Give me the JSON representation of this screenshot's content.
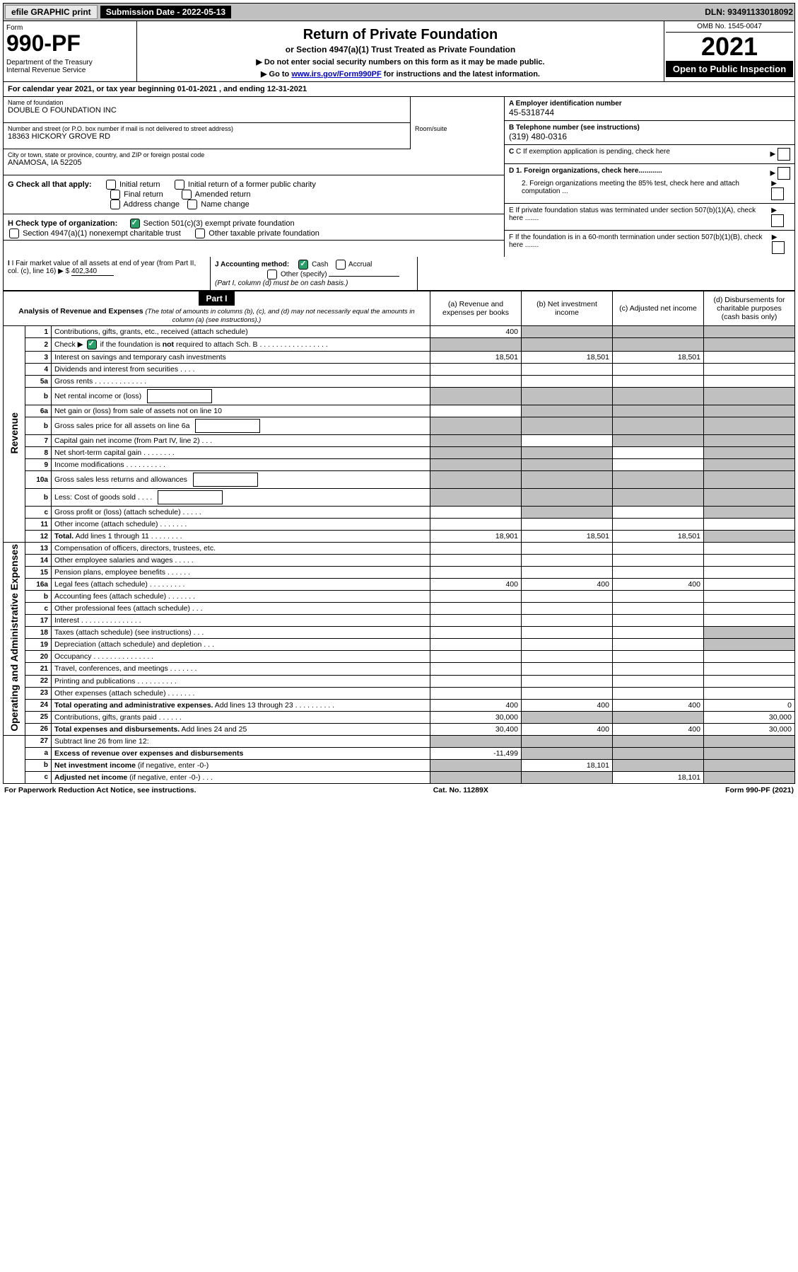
{
  "top_bar": {
    "efile_btn": "efile GRAPHIC print",
    "submission_label": "Submission Date - 2022-05-13",
    "dln": "DLN: 93491133018092"
  },
  "header": {
    "form_word": "Form",
    "form_number": "990-PF",
    "dept": "Department of the Treasury\nInternal Revenue Service",
    "title": "Return of Private Foundation",
    "subtitle": "or Section 4947(a)(1) Trust Treated as Private Foundation",
    "instr1": "▶ Do not enter social security numbers on this form as it may be made public.",
    "instr2_prefix": "▶ Go to ",
    "instr2_link": "www.irs.gov/Form990PF",
    "instr2_suffix": " for instructions and the latest information.",
    "omb": "OMB No. 1545-0047",
    "tax_year": "2021",
    "open_public": "Open to Public Inspection"
  },
  "cal_year": "For calendar year 2021, or tax year beginning 01-01-2021                          , and ending 12-31-2021",
  "info": {
    "name_label": "Name of foundation",
    "name": "DOUBLE O FOUNDATION INC",
    "addr_label": "Number and street (or P.O. box number if mail is not delivered to street address)",
    "addr": "18363 HICKORY GROVE RD",
    "room_label": "Room/suite",
    "city_label": "City or town, state or province, country, and ZIP or foreign postal code",
    "city": "ANAMOSA, IA  52205",
    "ein_label": "A Employer identification number",
    "ein": "45-5318744",
    "phone_label": "B Telephone number (see instructions)",
    "phone": "(319) 480-0316",
    "c_label": "C If exemption application is pending, check here",
    "d1_label": "D 1. Foreign organizations, check here............",
    "d2_label": "2. Foreign organizations meeting the 85% test, check here and attach computation ...",
    "e_label": "E  If private foundation status was terminated under section 507(b)(1)(A), check here .......",
    "f_label": "F  If the foundation is in a 60-month termination under section 507(b)(1)(B), check here .......",
    "g_label": "G Check all that apply:",
    "g_opts": {
      "initial": "Initial return",
      "initial_former": "Initial return of a former public charity",
      "final": "Final return",
      "amended": "Amended return",
      "addr_change": "Address change",
      "name_change": "Name change"
    },
    "h_label": "H Check type of organization:",
    "h_501c3": "Section 501(c)(3) exempt private foundation",
    "h_4947": "Section 4947(a)(1) nonexempt charitable trust",
    "h_other": "Other taxable private foundation",
    "i_label": "I Fair market value of all assets at end of year (from Part II, col. (c), line 16)",
    "i_val": "402,340",
    "j_label": "J Accounting method:",
    "j_cash": "Cash",
    "j_accrual": "Accrual",
    "j_other": "Other (specify)",
    "j_note": "(Part I, column (d) must be on cash basis.)"
  },
  "part1": {
    "label": "Part I",
    "title": "Analysis of Revenue and Expenses",
    "title_note": "(The total of amounts in columns (b), (c), and (d) may not necessarily equal the amounts in column (a) (see instructions).)",
    "col_a": "(a)   Revenue and expenses per books",
    "col_b": "(b)   Net investment income",
    "col_c": "(c)   Adjusted net income",
    "col_d": "(d)  Disbursements for charitable purposes (cash basis only)"
  },
  "side_labels": {
    "revenue": "Revenue",
    "opex": "Operating and Administrative Expenses"
  },
  "rows": [
    {
      "n": "1",
      "desc": "Contributions, gifts, grants, etc., received (attach schedule)",
      "a": "400",
      "shade": [
        "b",
        "c",
        "d"
      ]
    },
    {
      "n": "2",
      "desc_html": "Check ▶ [CHK] if the foundation is <b>not</b> required to attach Sch. B   .  .  .  .  .  .  .  .  .  .  .  .  .  .  .  .  .",
      "shade": [
        "a",
        "b",
        "c",
        "d"
      ]
    },
    {
      "n": "3",
      "desc": "Interest on savings and temporary cash investments",
      "a": "18,501",
      "b": "18,501",
      "c": "18,501"
    },
    {
      "n": "4",
      "desc": "Dividends and interest from securities   .  .  .  ."
    },
    {
      "n": "5a",
      "desc": "Gross rents   .  .  .  .  .  .  .  .  .  .  .  .  ."
    },
    {
      "n": "b",
      "desc": "Net rental income or (loss)",
      "inline_box": true,
      "shade": [
        "a",
        "b",
        "c",
        "d"
      ]
    },
    {
      "n": "6a",
      "desc": "Net gain or (loss) from sale of assets not on line 10",
      "shade": [
        "b",
        "c",
        "d"
      ]
    },
    {
      "n": "b",
      "desc": "Gross sales price for all assets on line 6a",
      "inline_box": true,
      "shade": [
        "a",
        "b",
        "c",
        "d"
      ]
    },
    {
      "n": "7",
      "desc": "Capital gain net income (from Part IV, line 2)   .  .  .",
      "shade": [
        "a",
        "c",
        "d"
      ]
    },
    {
      "n": "8",
      "desc": "Net short-term capital gain   .  .  .  .  .  .  .  .",
      "shade": [
        "a",
        "b",
        "d"
      ]
    },
    {
      "n": "9",
      "desc": "Income modifications  .  .  .  .  .  .  .  .  .  .",
      "shade": [
        "a",
        "b",
        "d"
      ]
    },
    {
      "n": "10a",
      "desc": "Gross sales less returns and allowances",
      "inline_box": true,
      "shade": [
        "a",
        "b",
        "c",
        "d"
      ]
    },
    {
      "n": "b",
      "desc": "Less: Cost of goods sold   .  .  .  .",
      "inline_box": true,
      "shade": [
        "a",
        "b",
        "c",
        "d"
      ]
    },
    {
      "n": "c",
      "desc": "Gross profit or (loss) (attach schedule)   .  .  .  .  .",
      "shade": [
        "b",
        "d"
      ]
    },
    {
      "n": "11",
      "desc": "Other income (attach schedule)   .  .  .  .  .  .  ."
    },
    {
      "n": "12",
      "desc": "<b>Total.</b> Add lines 1 through 11   .  .  .  .  .  .  .  .",
      "a": "18,901",
      "b": "18,501",
      "c": "18,501",
      "shade": [
        "d"
      ]
    }
  ],
  "opex_rows": [
    {
      "n": "13",
      "desc": "Compensation of officers, directors, trustees, etc."
    },
    {
      "n": "14",
      "desc": "Other employee salaries and wages   .  .  .  .  ."
    },
    {
      "n": "15",
      "desc": "Pension plans, employee benefits   .  .  .  .  .  ."
    },
    {
      "n": "16a",
      "desc": "Legal fees (attach schedule) .  .  .  .  .  .  .  .  .",
      "a": "400",
      "b": "400",
      "c": "400"
    },
    {
      "n": "b",
      "desc": "Accounting fees (attach schedule)  .  .  .  .  .  .  ."
    },
    {
      "n": "c",
      "desc": "Other professional fees (attach schedule)   .  .  ."
    },
    {
      "n": "17",
      "desc": "Interest  .  .  .  .  .  .  .  .  .  .  .  .  .  .  ."
    },
    {
      "n": "18",
      "desc": "Taxes (attach schedule) (see instructions)   .  .  .",
      "shade": [
        "d"
      ]
    },
    {
      "n": "19",
      "desc": "Depreciation (attach schedule) and depletion   .  .  .",
      "shade": [
        "d"
      ]
    },
    {
      "n": "20",
      "desc": "Occupancy .  .  .  .  .  .  .  .  .  .  .  .  .  .  ."
    },
    {
      "n": "21",
      "desc": "Travel, conferences, and meetings  .  .  .  .  .  .  ."
    },
    {
      "n": "22",
      "desc": "Printing and publications  .  .  .  .  .  .  .  .  .  ."
    },
    {
      "n": "23",
      "desc": "Other expenses (attach schedule)  .  .  .  .  .  .  ."
    },
    {
      "n": "24",
      "desc": "<b>Total operating and administrative expenses.</b> Add lines 13 through 23   .  .  .  .  .  .  .  .  .  .",
      "a": "400",
      "b": "400",
      "c": "400",
      "d": "0"
    },
    {
      "n": "25",
      "desc": "Contributions, gifts, grants paid   .  .  .  .  .  .",
      "a": "30,000",
      "d": "30,000",
      "shade": [
        "b",
        "c"
      ]
    },
    {
      "n": "26",
      "desc": "<b>Total expenses and disbursements.</b> Add lines 24 and 25",
      "a": "30,400",
      "b": "400",
      "c": "400",
      "d": "30,000"
    }
  ],
  "bottom_rows": [
    {
      "n": "27",
      "desc": "Subtract line 26 from line 12:",
      "shade": [
        "a",
        "b",
        "c",
        "d"
      ]
    },
    {
      "n": "a",
      "desc": "<b>Excess of revenue over expenses and disbursements</b>",
      "a": "-11,499",
      "shade": [
        "b",
        "c",
        "d"
      ]
    },
    {
      "n": "b",
      "desc": "<b>Net investment income</b> (if negative, enter -0-)",
      "b": "18,101",
      "shade": [
        "a",
        "c",
        "d"
      ]
    },
    {
      "n": "c",
      "desc": "<b>Adjusted net income</b> (if negative, enter -0-)   .  .  .",
      "c": "18,101",
      "shade": [
        "a",
        "b",
        "d"
      ]
    }
  ],
  "footer": {
    "left": "For Paperwork Reduction Act Notice, see instructions.",
    "center": "Cat. No. 11289X",
    "right": "Form 990-PF (2021)"
  }
}
